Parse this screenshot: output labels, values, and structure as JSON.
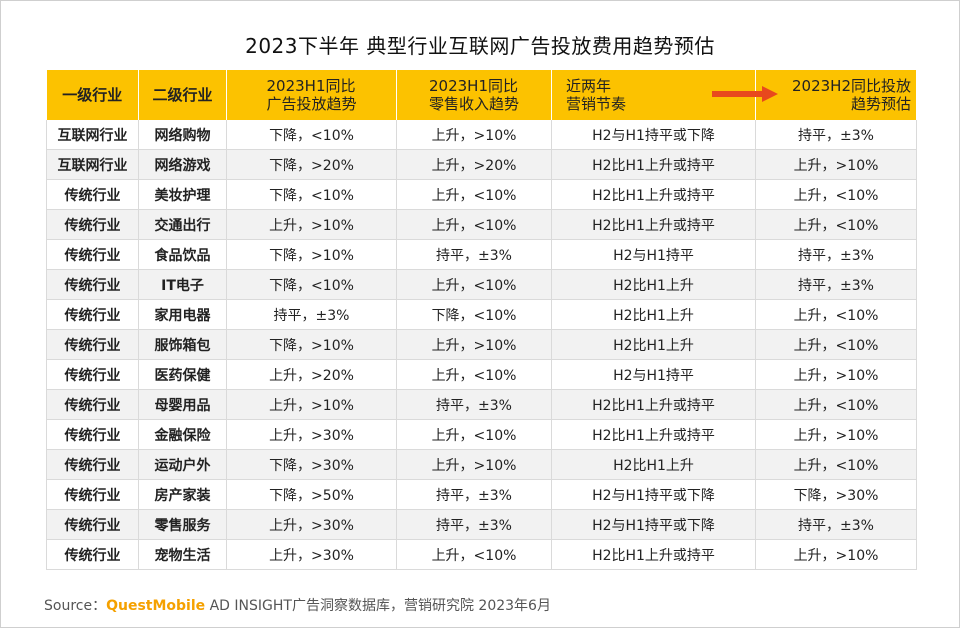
{
  "title": "2023下半年 典型行业互联网广告投放费用趋势预估",
  "headers": {
    "h0": "一级行业",
    "h1": "二级行业",
    "h2_line1": "2023H1同比",
    "h2_line2": "广告投放趋势",
    "h3_line1": "2023H1同比",
    "h3_line2": "零售收入趋势",
    "h4_line1": "近两年",
    "h4_line2": "营销节奏",
    "h5_line1": "2023H2同比投放",
    "h5_line2": "趋势预估"
  },
  "rows": [
    [
      "互联网行业",
      "网络购物",
      "下降，<10%",
      "上升，>10%",
      "H2与H1持平或下降",
      "持平，±3%"
    ],
    [
      "互联网行业",
      "网络游戏",
      "下降，>20%",
      "上升，>20%",
      "H2比H1上升或持平",
      "上升，>10%"
    ],
    [
      "传统行业",
      "美妆护理",
      "下降，<10%",
      "上升，<10%",
      "H2比H1上升或持平",
      "上升，<10%"
    ],
    [
      "传统行业",
      "交通出行",
      "上升，>10%",
      "上升，<10%",
      "H2比H1上升或持平",
      "上升，<10%"
    ],
    [
      "传统行业",
      "食品饮品",
      "下降，>10%",
      "持平，±3%",
      "H2与H1持平",
      "持平，±3%"
    ],
    [
      "传统行业",
      "IT电子",
      "下降，<10%",
      "上升，<10%",
      "H2比H1上升",
      "持平，±3%"
    ],
    [
      "传统行业",
      "家用电器",
      "持平，±3%",
      "下降，<10%",
      "H2比H1上升",
      "上升，<10%"
    ],
    [
      "传统行业",
      "服饰箱包",
      "下降，>10%",
      "上升，>10%",
      "H2比H1上升",
      "上升，<10%"
    ],
    [
      "传统行业",
      "医药保健",
      "上升，>20%",
      "上升，<10%",
      "H2与H1持平",
      "上升，>10%"
    ],
    [
      "传统行业",
      "母婴用品",
      "上升，>10%",
      "持平，±3%",
      "H2比H1上升或持平",
      "上升，<10%"
    ],
    [
      "传统行业",
      "金融保险",
      "上升，>30%",
      "上升，<10%",
      "H2比H1上升或持平",
      "上升，>10%"
    ],
    [
      "传统行业",
      "运动户外",
      "下降，>30%",
      "上升，>10%",
      "H2比H1上升",
      "上升，<10%"
    ],
    [
      "传统行业",
      "房产家装",
      "下降，>50%",
      "持平，±3%",
      "H2与H1持平或下降",
      "下降，>30%"
    ],
    [
      "传统行业",
      "零售服务",
      "上升，>30%",
      "持平，±3%",
      "H2与H1持平或下降",
      "持平，±3%"
    ],
    [
      "传统行业",
      "宠物生活",
      "上升，>30%",
      "上升，<10%",
      "H2比H1上升或持平",
      "上升，>10%"
    ]
  ],
  "source": {
    "prefix": "Source：",
    "brand": "QuestMobile",
    "suffix": " AD INSIGHT广告洞察数据库，营销研究院 2023年6月"
  },
  "colors": {
    "header_bg": "#fcc200",
    "arrow": "#e8491d",
    "brand": "#f5a100",
    "stripe": "#f2f2f2"
  }
}
